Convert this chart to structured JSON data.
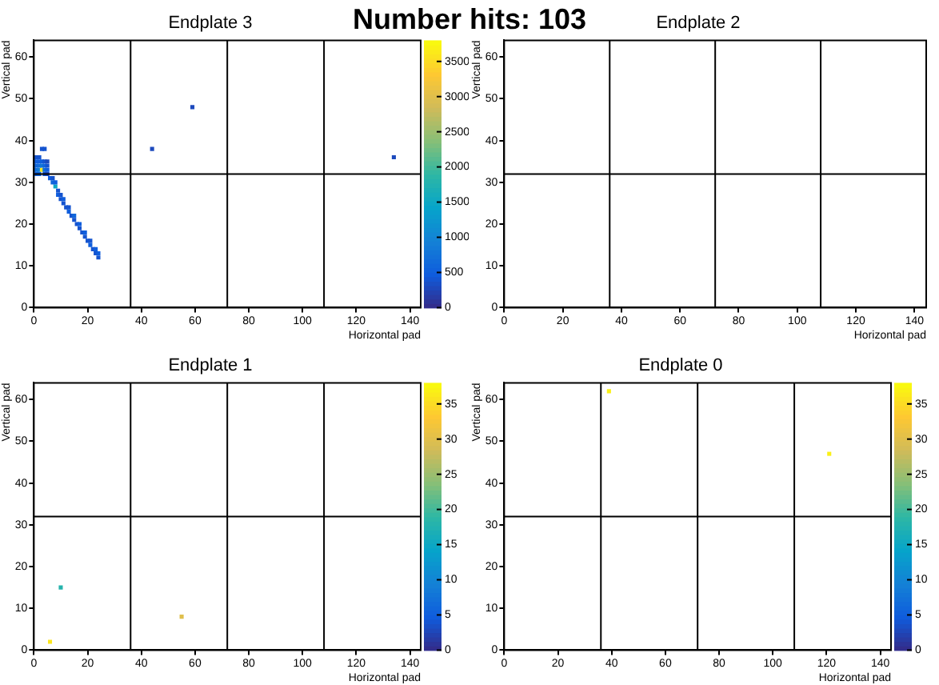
{
  "chart_data": [
    {
      "type": "scatter",
      "title": "Endplate 3",
      "xlabel": "Horizontal pad",
      "ylabel": "Vertical pad",
      "annotations": [
        "Number hits: 103"
      ],
      "xlim": [
        0,
        144
      ],
      "ylim": [
        0,
        64
      ],
      "xticks": [
        0,
        20,
        40,
        60,
        80,
        100,
        120,
        140
      ],
      "yticks": [
        0,
        10,
        20,
        30,
        40,
        50,
        60
      ],
      "clim": [
        0,
        3800
      ],
      "cticks": [
        0,
        500,
        1000,
        1500,
        2000,
        2500,
        3000,
        3500
      ],
      "grid": false,
      "marker": "square",
      "x": [
        0,
        0,
        0,
        0,
        1,
        1,
        1,
        1,
        1,
        2,
        2,
        2,
        2,
        2,
        3,
        3,
        3,
        4,
        4,
        4,
        4,
        5,
        5,
        5,
        5,
        3,
        4,
        6,
        7,
        7,
        8,
        8,
        9,
        9,
        10,
        10,
        11,
        11,
        12,
        13,
        13,
        14,
        15,
        15,
        16,
        17,
        17,
        18,
        19,
        19,
        20,
        21,
        21,
        22,
        23,
        23,
        24,
        24,
        44,
        59,
        134
      ],
      "values": [
        33,
        34,
        35,
        36,
        32,
        33,
        34,
        35,
        36,
        32,
        33,
        34,
        35,
        36,
        33,
        34,
        35,
        32,
        33,
        34,
        35,
        32,
        33,
        34,
        35,
        38,
        38,
        31,
        31,
        30,
        29,
        30,
        28,
        27,
        27,
        26,
        26,
        25,
        24,
        24,
        23,
        22,
        22,
        21,
        20,
        19,
        20,
        18,
        17,
        18,
        16,
        16,
        15,
        14,
        13,
        14,
        12,
        13,
        38,
        48,
        36
      ],
      "cvalues": [
        500,
        600,
        500,
        400,
        500,
        700,
        600,
        500,
        400,
        600,
        900,
        700,
        500,
        400,
        3600,
        800,
        500,
        400,
        700,
        600,
        400,
        300,
        500,
        400,
        300,
        400,
        400,
        500,
        400,
        600,
        1500,
        500,
        400,
        500,
        400,
        400,
        500,
        400,
        400,
        400,
        500,
        400,
        600,
        400,
        400,
        400,
        500,
        400,
        400,
        500,
        400,
        400,
        500,
        400,
        400,
        500,
        400,
        500,
        300,
        300,
        300
      ],
      "ref_lines": [
        {
          "axis": "x",
          "value": 36,
          "color": "#000000"
        },
        {
          "axis": "x",
          "value": 72,
          "color": "#000000"
        },
        {
          "axis": "x",
          "value": 108,
          "color": "#000000"
        },
        {
          "axis": "y",
          "value": 32,
          "color": "#000000"
        }
      ]
    },
    {
      "type": "scatter",
      "title": "Endplate 2",
      "xlabel": "Horizontal pad",
      "ylabel": "Vertical pad",
      "xlim": [
        0,
        144
      ],
      "ylim": [
        0,
        64
      ],
      "xticks": [
        0,
        20,
        40,
        60,
        80,
        100,
        120,
        140
      ],
      "yticks": [
        0,
        10,
        20,
        30,
        40,
        50,
        60
      ],
      "grid": false,
      "marker": "square",
      "ref_lines": [
        {
          "axis": "x",
          "value": 36,
          "color": "#000000"
        },
        {
          "axis": "x",
          "value": 72,
          "color": "#000000"
        },
        {
          "axis": "x",
          "value": 108,
          "color": "#000000"
        },
        {
          "axis": "y",
          "value": 32,
          "color": "#000000"
        }
      ]
    },
    {
      "type": "scatter",
      "title": "Endplate 1",
      "xlabel": "Horizontal pad",
      "ylabel": "Vertical pad",
      "xlim": [
        0,
        144
      ],
      "ylim": [
        0,
        64
      ],
      "xticks": [
        0,
        20,
        40,
        60,
        80,
        100,
        120,
        140
      ],
      "yticks": [
        0,
        10,
        20,
        30,
        40,
        50,
        60
      ],
      "clim": [
        0,
        38
      ],
      "cticks": [
        0,
        5,
        10,
        15,
        20,
        25,
        30,
        35
      ],
      "grid": false,
      "marker": "square",
      "x": [
        10,
        55,
        6
      ],
      "values": [
        15,
        8,
        2
      ],
      "cvalues": [
        18,
        30,
        36
      ],
      "ref_lines": [
        {
          "axis": "x",
          "value": 36,
          "color": "#000000"
        },
        {
          "axis": "x",
          "value": 72,
          "color": "#000000"
        },
        {
          "axis": "x",
          "value": 108,
          "color": "#000000"
        },
        {
          "axis": "y",
          "value": 32,
          "color": "#000000"
        }
      ]
    },
    {
      "type": "scatter",
      "title": "Endplate 0",
      "xlabel": "Horizontal pad",
      "ylabel": "Vertical pad",
      "xlim": [
        0,
        144
      ],
      "ylim": [
        0,
        64
      ],
      "xticks": [
        0,
        20,
        40,
        60,
        80,
        100,
        120,
        140
      ],
      "yticks": [
        0,
        10,
        20,
        30,
        40,
        50,
        60
      ],
      "clim": [
        0,
        38
      ],
      "cticks": [
        0,
        5,
        10,
        15,
        20,
        25,
        30,
        35
      ],
      "grid": false,
      "marker": "square",
      "x": [
        39,
        121
      ],
      "values": [
        62,
        47
      ],
      "cvalues": [
        37,
        37
      ],
      "ref_lines": [
        {
          "axis": "x",
          "value": 36,
          "color": "#000000"
        },
        {
          "axis": "x",
          "value": 72,
          "color": "#000000"
        },
        {
          "axis": "x",
          "value": 108,
          "color": "#000000"
        },
        {
          "axis": "y",
          "value": 32,
          "color": "#000000"
        }
      ]
    }
  ]
}
